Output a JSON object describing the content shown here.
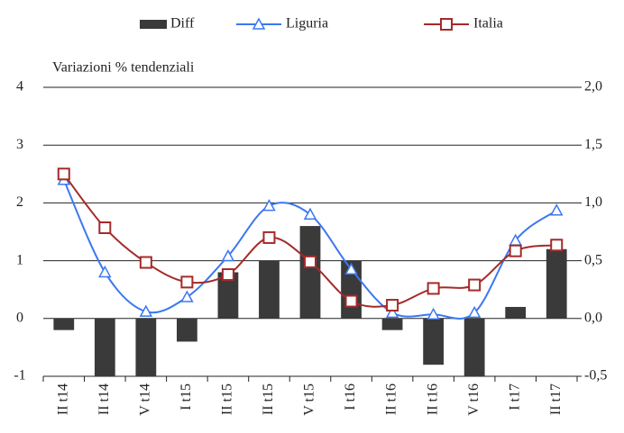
{
  "chart_data": {
    "type": "bar_line",
    "annotation": "Variazioni % tendenziali",
    "categories": [
      "II t14",
      "II t14",
      "V t14",
      "I t15",
      "II t15",
      "II t15",
      "V t15",
      "I t16",
      "II t16",
      "II t16",
      "V t16",
      "I t17",
      "II t17"
    ],
    "series": [
      {
        "name": "Diff",
        "type": "bar",
        "axis": "y2",
        "color": "#3a3a3a",
        "values": [
          -0.1,
          -0.5,
          -0.5,
          -0.2,
          0.4,
          0.5,
          0.8,
          0.5,
          -0.1,
          -0.4,
          -0.5,
          0.1,
          0.6
        ]
      },
      {
        "name": "Liguria",
        "type": "line",
        "marker": "triangle",
        "color": "#3c78f0",
        "values": [
          2.4,
          0.8,
          0.12,
          0.37,
          1.08,
          1.95,
          1.8,
          0.85,
          0.1,
          0.07,
          0.1,
          1.35,
          1.87
        ]
      },
      {
        "name": "Italia",
        "type": "line",
        "marker": "square",
        "color": "#a52a2a",
        "values": [
          2.5,
          1.57,
          0.97,
          0.63,
          0.76,
          1.4,
          0.98,
          0.3,
          0.23,
          0.52,
          0.58,
          1.17,
          1.27
        ]
      }
    ],
    "ylim": [
      -1,
      4
    ],
    "yticks": [
      -1,
      0,
      1,
      2,
      3,
      4
    ],
    "y2lim": [
      -0.5,
      2.0
    ],
    "y2ticks": [
      {
        "value": -0.5,
        "label": "-0,5"
      },
      {
        "value": 0,
        "label": "0,0"
      },
      {
        "value": 0.5,
        "label": "0,5"
      },
      {
        "value": 1.0,
        "label": "1,0"
      },
      {
        "value": 1.5,
        "label": "1,5"
      },
      {
        "value": 2.0,
        "label": "2,0"
      }
    ],
    "grid": true
  }
}
